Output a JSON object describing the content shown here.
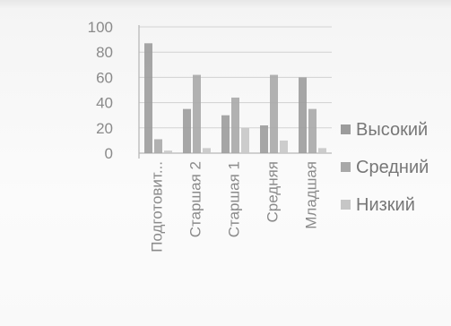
{
  "chart_data": {
    "type": "bar",
    "categories": [
      "Подготовит...",
      "Старшая 2",
      "Старшая 1",
      "Средняя",
      "Младшая"
    ],
    "series": [
      {
        "name": "Высокий",
        "color": "#9c9c9c",
        "values": [
          87,
          35,
          30,
          22,
          60
        ]
      },
      {
        "name": "Средний",
        "color": "#a8a8a8",
        "values": [
          11,
          62,
          44,
          62,
          35
        ]
      },
      {
        "name": "Низкий",
        "color": "#c6c6c6",
        "values": [
          2,
          4,
          20,
          10,
          4
        ]
      }
    ],
    "y_ticks": [
      "100",
      "80",
      "60",
      "40",
      "20",
      "0"
    ],
    "ylim": [
      0,
      100
    ],
    "grid": true,
    "legend": "right"
  }
}
